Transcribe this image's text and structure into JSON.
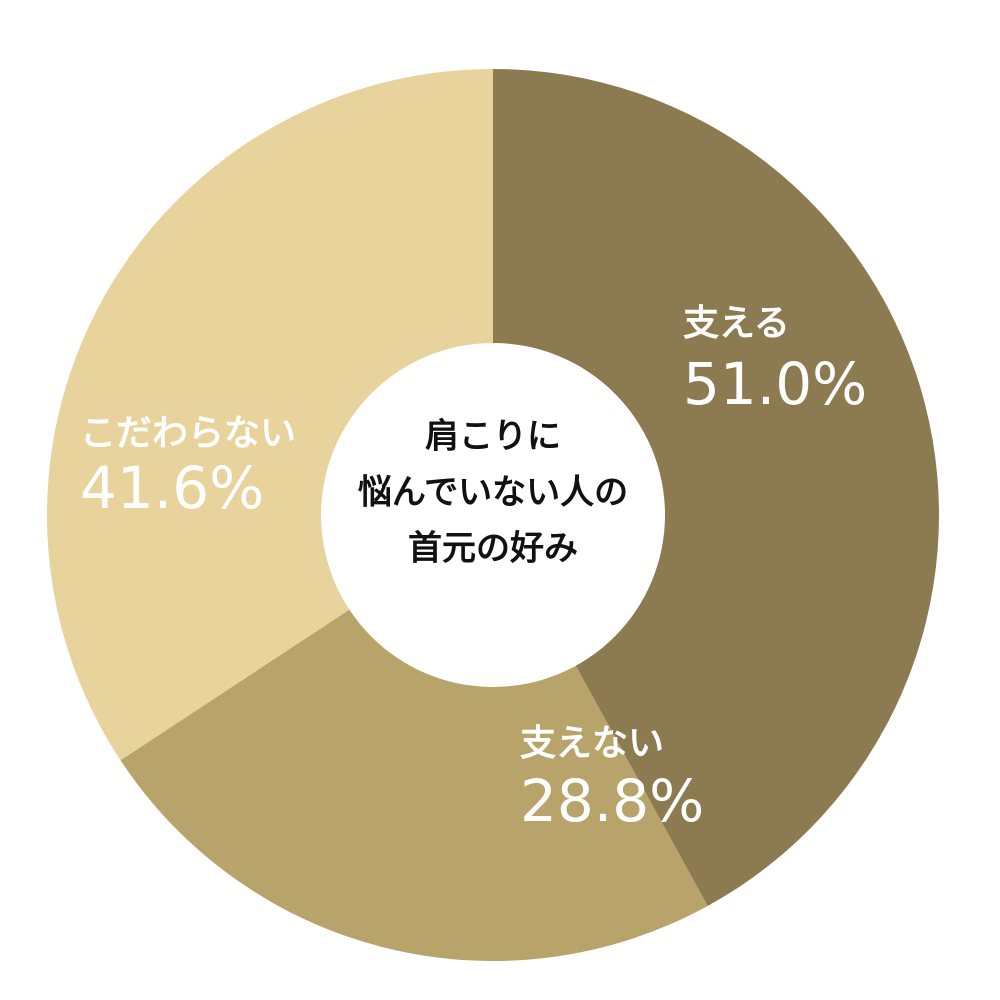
{
  "chart_data": {
    "type": "donut",
    "title": [
      "肩こりに",
      "悩んでいない人の",
      "首元の好み"
    ],
    "categories": [
      "支える",
      "支えない",
      "こだわらない"
    ],
    "values": [
      51.0,
      28.8,
      41.6
    ],
    "value_labels": [
      "51.0%",
      "28.8%",
      "41.6%"
    ],
    "colors": [
      "#8c7b50",
      "#b8a36a",
      "#e8d39c"
    ]
  }
}
